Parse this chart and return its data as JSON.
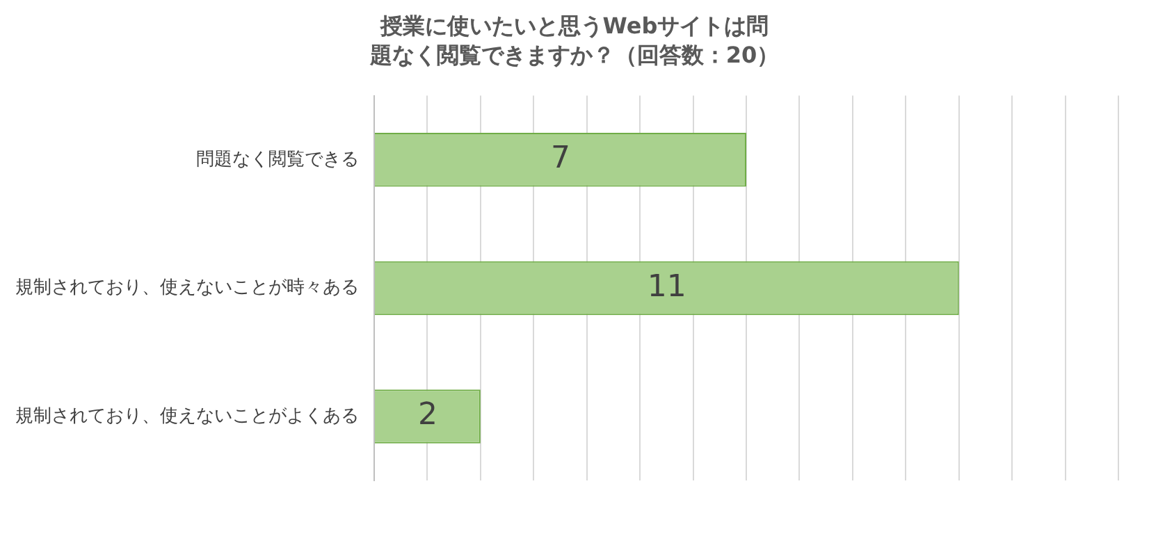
{
  "chart_data": {
    "type": "bar",
    "orientation": "horizontal",
    "title": "授業に使いたいと思うWebサイトは問題なく閲覧できますか？（回答数：20）",
    "categories": [
      "問題なく閲覧できる",
      "規制されており、使えないことが時々ある",
      "規制されており、使えないことがよくある"
    ],
    "values": [
      7,
      11,
      2
    ],
    "color": "#a9d18e",
    "data_labels": true,
    "xlim": [
      0,
      14
    ],
    "xticks": [
      {
        "value": 0,
        "label": null
      },
      {
        "value": 1,
        "label": null
      },
      {
        "value": 2,
        "label": null
      },
      {
        "value": 3,
        "label": null
      },
      {
        "value": 4,
        "label": null
      },
      {
        "value": 5,
        "label": null
      },
      {
        "value": 6,
        "label": null
      },
      {
        "value": 7,
        "label": null
      },
      {
        "value": 8,
        "label": null
      },
      {
        "value": 9,
        "label": null
      },
      {
        "value": 10,
        "label": null
      },
      {
        "value": 11,
        "label": null
      },
      {
        "value": 12,
        "label": null
      },
      {
        "value": 13,
        "label": null
      },
      {
        "value": 14,
        "label": null
      }
    ],
    "grid": "x",
    "legend": false
  }
}
